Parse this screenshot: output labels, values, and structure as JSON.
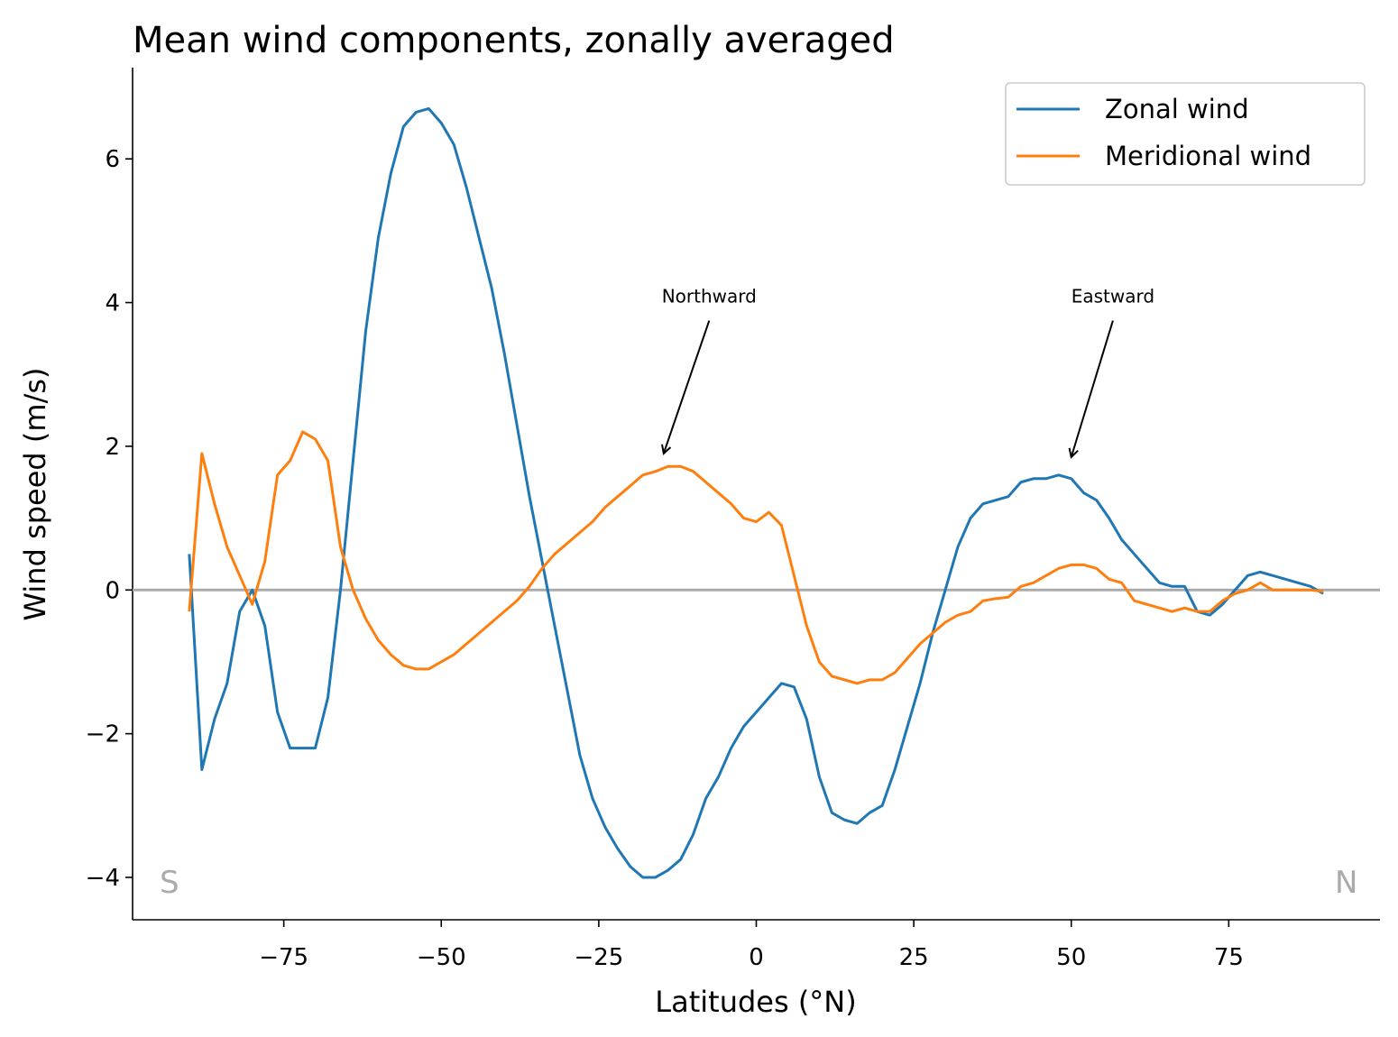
{
  "chart_data": {
    "type": "line",
    "title": "Mean wind components, zonally averaged",
    "xlabel": "Latitudes (°N)",
    "ylabel": "Wind speed (m/s)",
    "x": [
      -90,
      -88,
      -86,
      -84,
      -82,
      -80,
      -78,
      -76,
      -74,
      -72,
      -70,
      -68,
      -66,
      -64,
      -62,
      -60,
      -58,
      -56,
      -54,
      -52,
      -50,
      -48,
      -46,
      -44,
      -42,
      -40,
      -38,
      -36,
      -34,
      -32,
      -30,
      -28,
      -26,
      -24,
      -22,
      -20,
      -18,
      -16,
      -14,
      -12,
      -10,
      -8,
      -6,
      -4,
      -2,
      0,
      2,
      4,
      6,
      8,
      10,
      12,
      14,
      16,
      18,
      20,
      22,
      24,
      26,
      28,
      30,
      32,
      34,
      36,
      38,
      40,
      42,
      44,
      46,
      48,
      50,
      52,
      54,
      56,
      58,
      60,
      62,
      64,
      66,
      68,
      70,
      72,
      74,
      76,
      78,
      80,
      82,
      84,
      86,
      88,
      90
    ],
    "series": [
      {
        "name": "Zonal wind",
        "color": "#1f77b4",
        "values": [
          0.5,
          -2.5,
          -1.8,
          -1.3,
          -0.3,
          0.0,
          -0.5,
          -1.7,
          -2.2,
          -2.2,
          -2.2,
          -1.5,
          0.0,
          1.8,
          3.6,
          4.9,
          5.8,
          6.45,
          6.65,
          6.7,
          6.5,
          6.2,
          5.6,
          4.9,
          4.2,
          3.3,
          2.3,
          1.3,
          0.4,
          -0.5,
          -1.4,
          -2.3,
          -2.9,
          -3.3,
          -3.6,
          -3.85,
          -4.0,
          -4.0,
          -3.9,
          -3.75,
          -3.4,
          -2.9,
          -2.6,
          -2.2,
          -1.9,
          -1.7,
          -1.5,
          -1.3,
          -1.35,
          -1.8,
          -2.6,
          -3.1,
          -3.2,
          -3.25,
          -3.1,
          -3.0,
          -2.5,
          -1.9,
          -1.3,
          -0.6,
          0.0,
          0.6,
          1.0,
          1.2,
          1.25,
          1.3,
          1.5,
          1.55,
          1.55,
          1.6,
          1.55,
          1.35,
          1.25,
          1.0,
          0.7,
          0.5,
          0.3,
          0.1,
          0.05,
          0.05,
          -0.3,
          -0.35,
          -0.2,
          0.0,
          0.2,
          0.25,
          0.2,
          0.15,
          0.1,
          0.05,
          -0.05
        ]
      },
      {
        "name": "Meridional wind",
        "color": "#ff7f0e",
        "values": [
          -0.3,
          1.9,
          1.2,
          0.6,
          0.2,
          -0.2,
          0.4,
          1.6,
          1.8,
          2.2,
          2.1,
          1.8,
          0.6,
          0.0,
          -0.4,
          -0.7,
          -0.9,
          -1.05,
          -1.1,
          -1.1,
          -1.0,
          -0.9,
          -0.75,
          -0.6,
          -0.45,
          -0.3,
          -0.15,
          0.05,
          0.3,
          0.5,
          0.65,
          0.8,
          0.95,
          1.15,
          1.3,
          1.45,
          1.6,
          1.65,
          1.72,
          1.72,
          1.65,
          1.5,
          1.35,
          1.2,
          1.0,
          0.95,
          1.08,
          0.9,
          0.2,
          -0.5,
          -1.0,
          -1.2,
          -1.25,
          -1.3,
          -1.25,
          -1.25,
          -1.15,
          -0.95,
          -0.75,
          -0.6,
          -0.45,
          -0.35,
          -0.3,
          -0.15,
          -0.12,
          -0.1,
          0.05,
          0.1,
          0.2,
          0.3,
          0.35,
          0.35,
          0.3,
          0.15,
          0.1,
          -0.15,
          -0.2,
          -0.25,
          -0.3,
          -0.25,
          -0.3,
          -0.3,
          -0.15,
          -0.05,
          0.0,
          0.1,
          0.0,
          0.0,
          0.0,
          0.0,
          -0.02
        ]
      }
    ],
    "xlim": [
      -99,
      99
    ],
    "ylim": [
      -4.59,
      7.27
    ],
    "xticks": [
      {
        "value": -75,
        "label": "−75"
      },
      {
        "value": -50,
        "label": "−50"
      },
      {
        "value": -25,
        "label": "−25"
      },
      0,
      25,
      50,
      75
    ],
    "yticks": [
      {
        "value": -4,
        "label": "−4"
      },
      {
        "value": -2,
        "label": "−2"
      },
      0,
      2,
      4,
      6
    ],
    "reference_line": {
      "y": 0,
      "color": "#aaaaaa"
    },
    "annotations": [
      {
        "text": "Northward",
        "xytext": [
          -15,
          4
        ],
        "xy": [
          -14.7,
          1.9
        ]
      },
      {
        "text": "Eastward",
        "xytext": [
          50,
          4
        ],
        "xy": [
          50,
          1.85
        ]
      }
    ],
    "corner_labels": {
      "left": "S",
      "right": "N"
    },
    "legend": "upper right",
    "grid": false
  }
}
